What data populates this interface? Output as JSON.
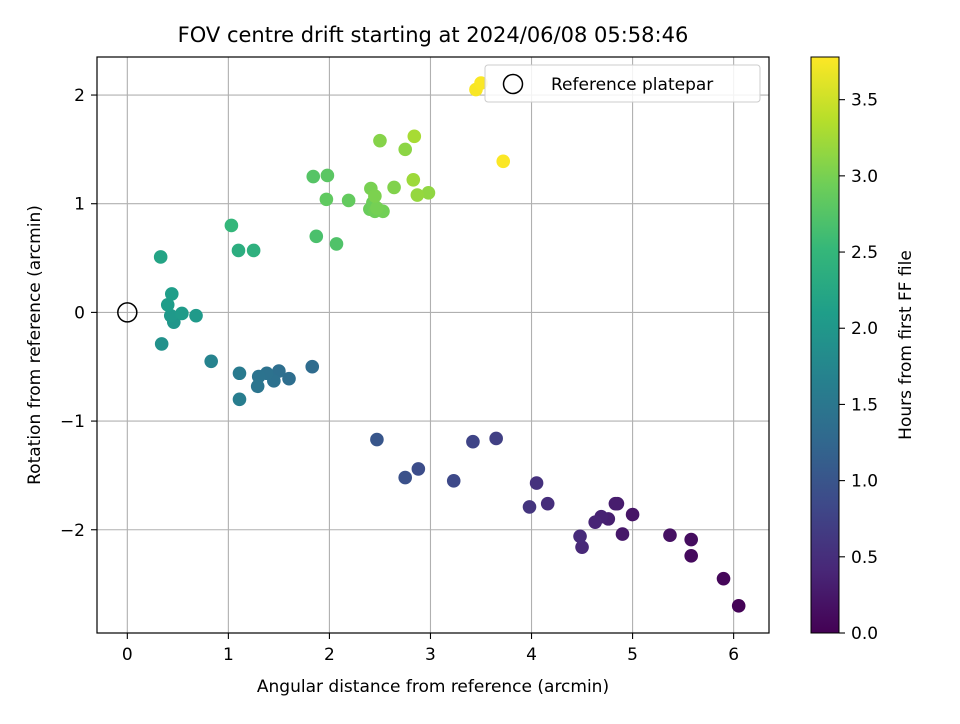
{
  "chart_data": {
    "type": "scatter",
    "title": "FOV centre drift starting at 2024/06/08 05:58:46",
    "xlabel": "Angular distance from reference (arcmin)",
    "ylabel": "Rotation from reference (arcmin)",
    "xlim": [
      -0.3,
      6.35
    ],
    "ylim": [
      -2.95,
      2.35
    ],
    "x_ticks": [
      0,
      1,
      2,
      3,
      4,
      5,
      6
    ],
    "y_ticks": [
      -2,
      -1,
      0,
      1,
      2
    ],
    "grid": true,
    "legend": {
      "placement": "top-right",
      "entries": [
        "Reference platepar"
      ]
    },
    "reference_point": {
      "x": 0,
      "y": 0
    },
    "colorbar": {
      "label": "Hours from first FF file",
      "range": [
        0.0,
        3.78
      ],
      "ticks": [
        0.0,
        0.5,
        1.0,
        1.5,
        2.0,
        2.5,
        3.0,
        3.5
      ],
      "tick_labels": [
        "0.0",
        "0.5",
        "1.0",
        "1.5",
        "2.0",
        "2.5",
        "3.0",
        "3.5"
      ],
      "colormap": "viridis",
      "stops": [
        "#440154",
        "#482878",
        "#3e4989",
        "#31688e",
        "#26828e",
        "#1f9e89",
        "#35b779",
        "#6ece58",
        "#b5de2b",
        "#fde725"
      ]
    },
    "points": [
      {
        "x": 6.05,
        "y": -2.7,
        "h": 0.02
      },
      {
        "x": 5.9,
        "y": -2.45,
        "h": 0.06
      },
      {
        "x": 5.58,
        "y": -2.24,
        "h": 0.1
      },
      {
        "x": 5.58,
        "y": -2.09,
        "h": 0.13
      },
      {
        "x": 5.37,
        "y": -2.05,
        "h": 0.17
      },
      {
        "x": 5.0,
        "y": -1.86,
        "h": 0.21
      },
      {
        "x": 4.9,
        "y": -2.04,
        "h": 0.25
      },
      {
        "x": 4.85,
        "y": -1.76,
        "h": 0.28
      },
      {
        "x": 4.83,
        "y": -1.76,
        "h": 0.3
      },
      {
        "x": 4.76,
        "y": -1.9,
        "h": 0.33
      },
      {
        "x": 4.69,
        "y": -1.88,
        "h": 0.36
      },
      {
        "x": 4.63,
        "y": -1.93,
        "h": 0.39
      },
      {
        "x": 4.5,
        "y": -2.16,
        "h": 0.43
      },
      {
        "x": 4.48,
        "y": -2.06,
        "h": 0.46
      },
      {
        "x": 4.16,
        "y": -1.76,
        "h": 0.5
      },
      {
        "x": 4.05,
        "y": -1.57,
        "h": 0.54
      },
      {
        "x": 3.98,
        "y": -1.79,
        "h": 0.58
      },
      {
        "x": 3.65,
        "y": -1.16,
        "h": 0.72
      },
      {
        "x": 3.42,
        "y": -1.19,
        "h": 0.78
      },
      {
        "x": 3.23,
        "y": -1.55,
        "h": 0.84
      },
      {
        "x": 2.88,
        "y": -1.44,
        "h": 0.9
      },
      {
        "x": 2.75,
        "y": -1.52,
        "h": 0.95
      },
      {
        "x": 2.47,
        "y": -1.17,
        "h": 1.02
      },
      {
        "x": 1.83,
        "y": -0.5,
        "h": 1.32
      },
      {
        "x": 1.6,
        "y": -0.61,
        "h": 1.36
      },
      {
        "x": 1.5,
        "y": -0.54,
        "h": 1.38
      },
      {
        "x": 1.45,
        "y": -0.63,
        "h": 1.4
      },
      {
        "x": 1.38,
        "y": -0.56,
        "h": 1.42
      },
      {
        "x": 1.3,
        "y": -0.59,
        "h": 1.44
      },
      {
        "x": 1.29,
        "y": -0.68,
        "h": 1.47
      },
      {
        "x": 1.11,
        "y": -0.56,
        "h": 1.55
      },
      {
        "x": 1.11,
        "y": -0.8,
        "h": 1.6
      },
      {
        "x": 0.83,
        "y": -0.45,
        "h": 1.7
      },
      {
        "x": 0.34,
        "y": -0.29,
        "h": 1.9
      },
      {
        "x": 0.46,
        "y": -0.09,
        "h": 1.98
      },
      {
        "x": 0.43,
        "y": -0.03,
        "h": 2.02
      },
      {
        "x": 0.68,
        "y": -0.03,
        "h": 2.04
      },
      {
        "x": 0.54,
        "y": -0.01,
        "h": 2.06
      },
      {
        "x": 0.4,
        "y": 0.07,
        "h": 2.08
      },
      {
        "x": 0.44,
        "y": 0.17,
        "h": 2.1
      },
      {
        "x": 0.33,
        "y": 0.51,
        "h": 2.2
      },
      {
        "x": 1.1,
        "y": 0.57,
        "h": 2.35
      },
      {
        "x": 1.25,
        "y": 0.57,
        "h": 2.4
      },
      {
        "x": 1.03,
        "y": 0.8,
        "h": 2.5
      },
      {
        "x": 1.87,
        "y": 0.7,
        "h": 2.68
      },
      {
        "x": 2.07,
        "y": 0.63,
        "h": 2.72
      },
      {
        "x": 1.84,
        "y": 1.25,
        "h": 2.76
      },
      {
        "x": 1.98,
        "y": 1.26,
        "h": 2.8
      },
      {
        "x": 1.97,
        "y": 1.04,
        "h": 2.84
      },
      {
        "x": 2.19,
        "y": 1.03,
        "h": 2.86
      },
      {
        "x": 2.4,
        "y": 0.95,
        "h": 2.9
      },
      {
        "x": 2.43,
        "y": 1.01,
        "h": 2.92
      },
      {
        "x": 2.45,
        "y": 0.93,
        "h": 2.94
      },
      {
        "x": 2.53,
        "y": 0.93,
        "h": 2.96
      },
      {
        "x": 2.47,
        "y": 0.96,
        "h": 2.98
      },
      {
        "x": 2.41,
        "y": 1.14,
        "h": 3.0
      },
      {
        "x": 2.45,
        "y": 1.07,
        "h": 3.02
      },
      {
        "x": 2.64,
        "y": 1.15,
        "h": 3.05
      },
      {
        "x": 2.5,
        "y": 1.58,
        "h": 3.08
      },
      {
        "x": 2.75,
        "y": 1.5,
        "h": 3.12
      },
      {
        "x": 2.98,
        "y": 1.1,
        "h": 3.14
      },
      {
        "x": 2.87,
        "y": 1.08,
        "h": 3.17
      },
      {
        "x": 2.83,
        "y": 1.22,
        "h": 3.22
      },
      {
        "x": 2.84,
        "y": 1.62,
        "h": 3.28
      },
      {
        "x": 3.45,
        "y": 2.05,
        "h": 3.75
      },
      {
        "x": 3.5,
        "y": 2.11,
        "h": 3.76
      },
      {
        "x": 3.72,
        "y": 1.39,
        "h": 3.77
      }
    ]
  }
}
